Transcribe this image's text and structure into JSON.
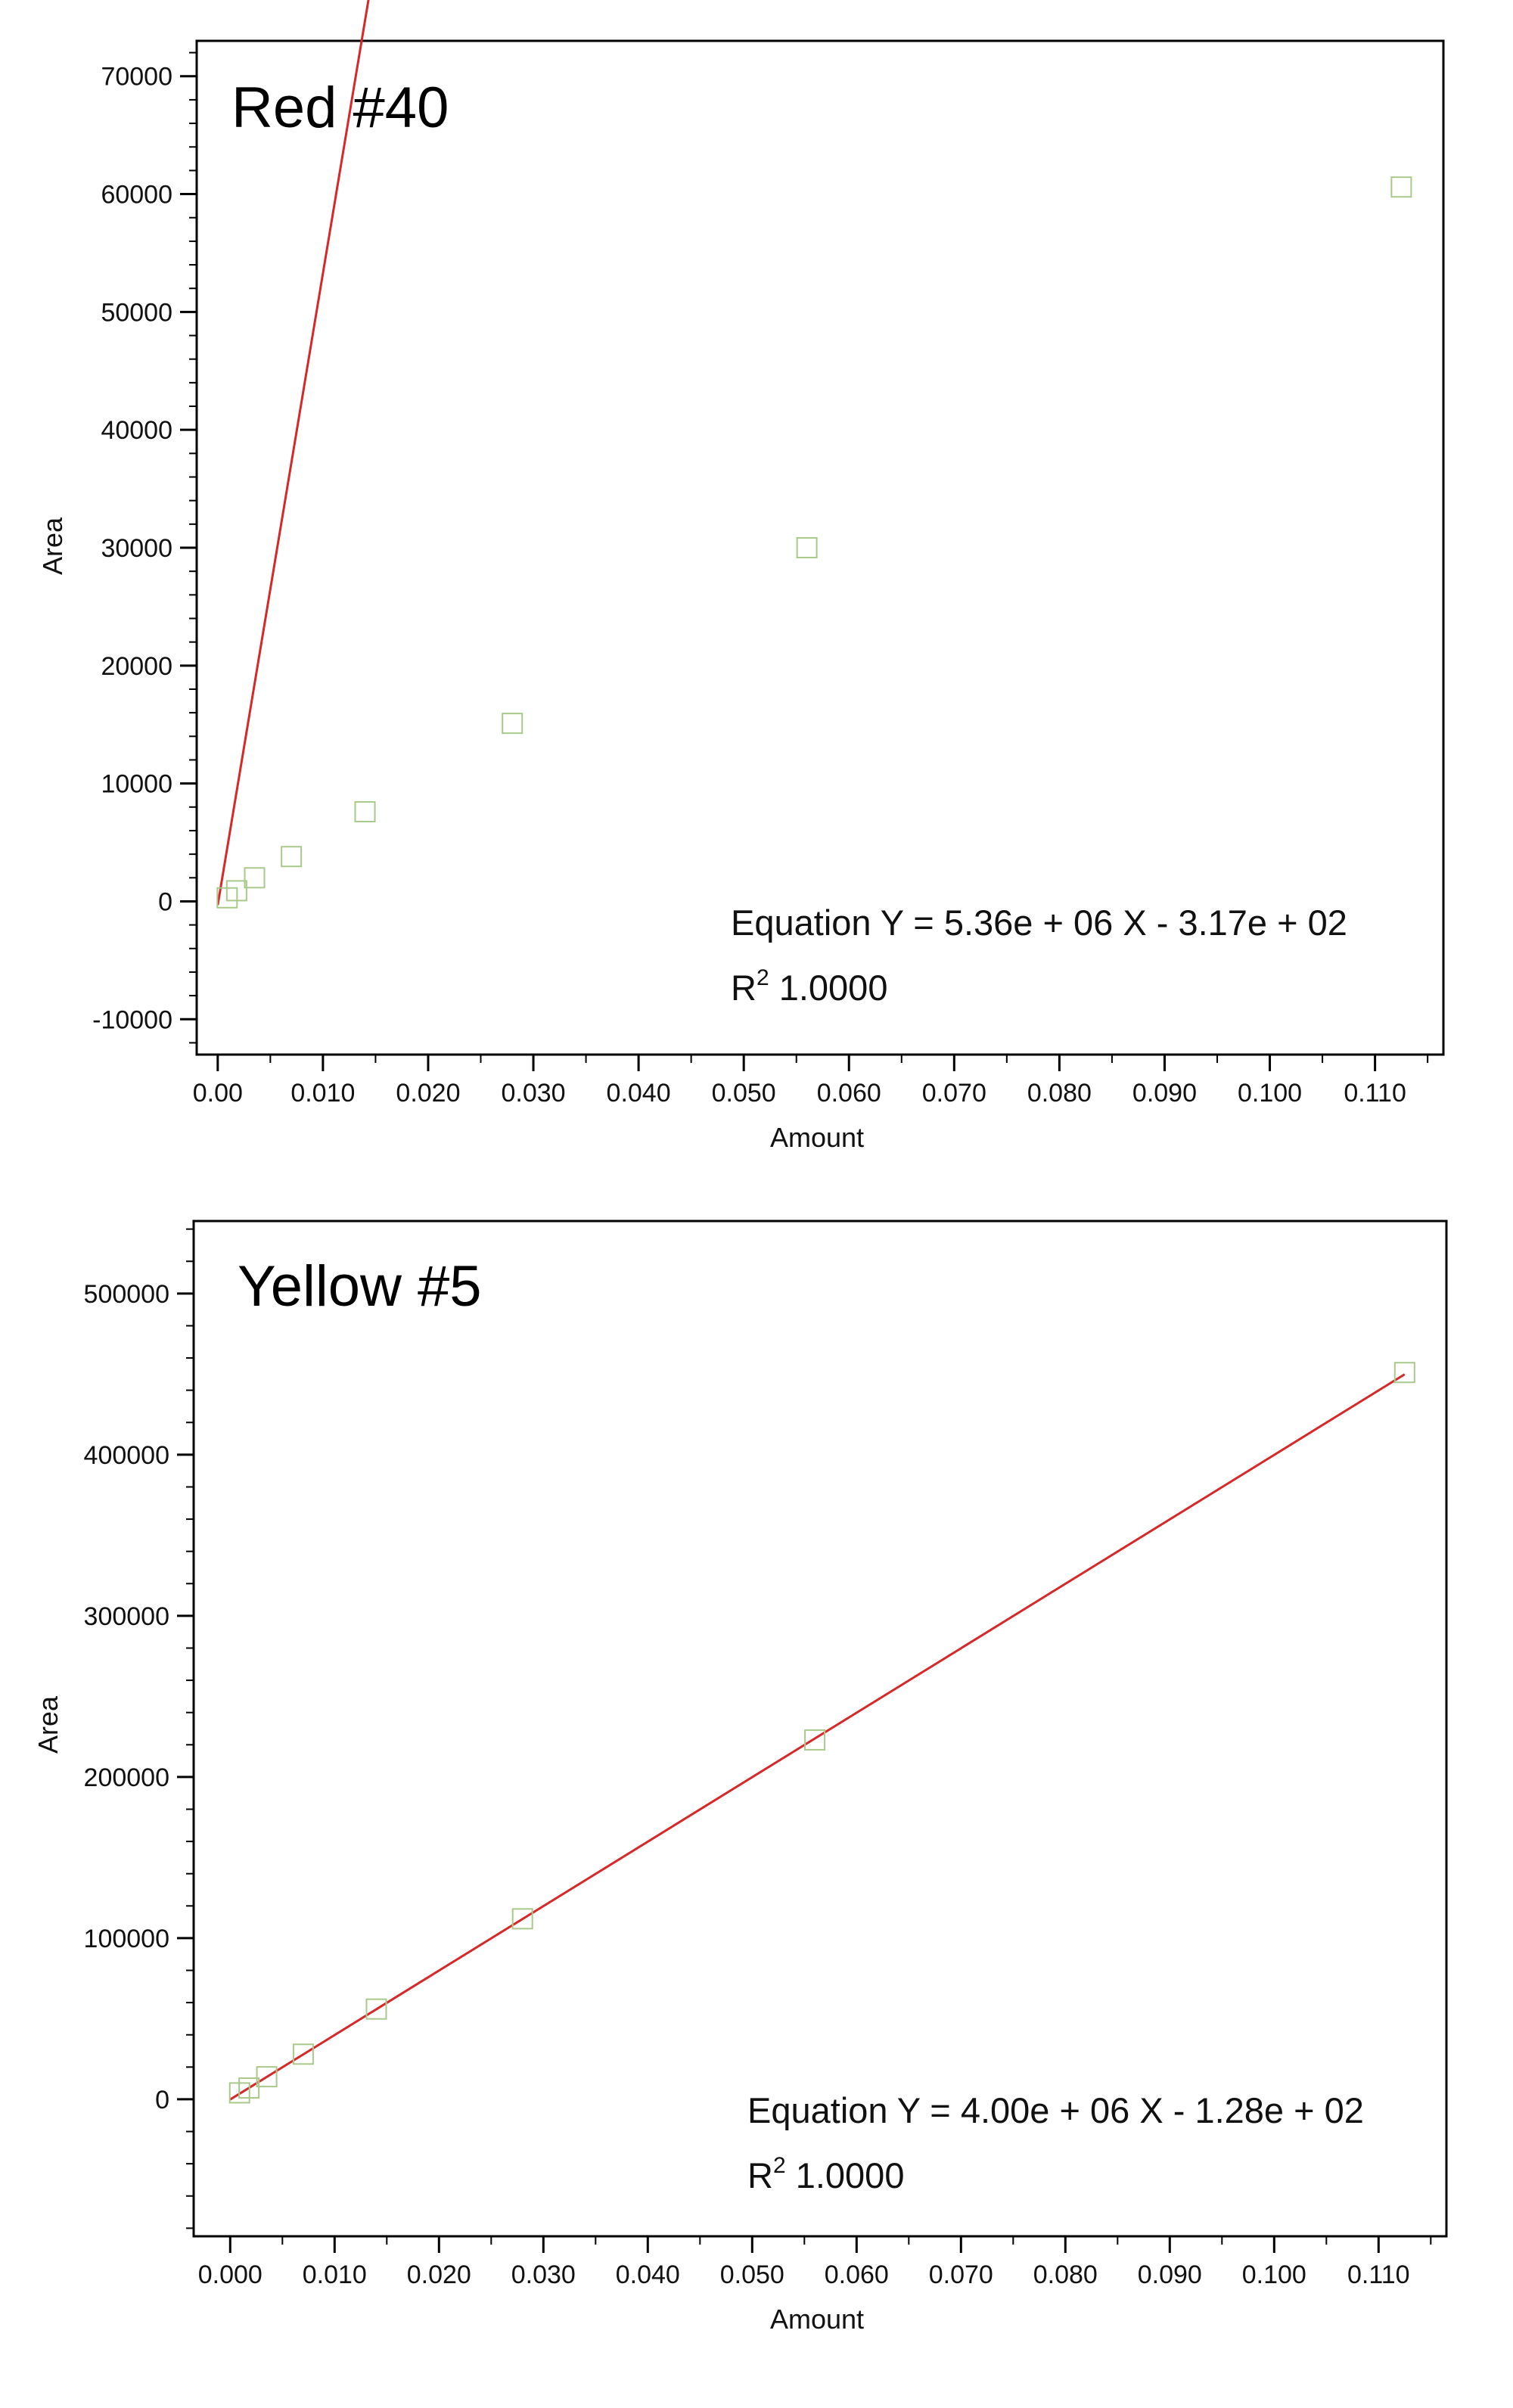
{
  "chart_data": [
    {
      "type": "scatter",
      "title": "Red #40",
      "xlabel": "Amount",
      "ylabel": "Area",
      "xlim": [
        -0.002,
        0.1165
      ],
      "ylim": [
        -13000,
        73000
      ],
      "x_ticks": [
        "0.00",
        "0.010",
        "0.020",
        "0.030",
        "0.040",
        "0.050",
        "0.060",
        "0.070",
        "0.080",
        "0.090",
        "0.100",
        "0.110"
      ],
      "x_tick_values": [
        0.0,
        0.01,
        0.02,
        0.03,
        0.04,
        0.05,
        0.06,
        0.07,
        0.08,
        0.09,
        0.1,
        0.11
      ],
      "y_ticks": [
        "-10000",
        "0",
        "10000",
        "20000",
        "30000",
        "40000",
        "50000",
        "60000",
        "70000"
      ],
      "y_tick_values": [
        -10000,
        0,
        10000,
        20000,
        30000,
        40000,
        50000,
        60000,
        70000
      ],
      "grid": false,
      "series": [
        {
          "x": [
            0.0009,
            0.0018,
            0.0035,
            0.007,
            0.014,
            0.028,
            0.056,
            0.1125
          ],
          "y": [
            300,
            900,
            2000,
            3800,
            7600,
            15100,
            30000,
            60600
          ]
        }
      ],
      "fit": {
        "slope": 5360000,
        "intercept": -317,
        "x_range": [
          0.0,
          0.1125
        ]
      },
      "annotations": {
        "equation": "Equation Y = 5.36e + 06 X - 3.17e + 02",
        "r2_label": "R",
        "r2_exp": "2",
        "r2_value": " 1.0000"
      },
      "colors": {
        "line": "#d62828",
        "marker": "#a9c98a"
      }
    },
    {
      "type": "scatter",
      "title": "Yellow #5",
      "xlabel": "Amount",
      "ylabel": "Area",
      "xlim": [
        -0.0035,
        0.1165
      ],
      "ylim": [
        -85000,
        545000
      ],
      "x_ticks": [
        "0.000",
        "0.010",
        "0.020",
        "0.030",
        "0.040",
        "0.050",
        "0.060",
        "0.070",
        "0.080",
        "0.090",
        "0.100",
        "0.110"
      ],
      "x_tick_values": [
        0.0,
        0.01,
        0.02,
        0.03,
        0.04,
        0.05,
        0.06,
        0.07,
        0.08,
        0.09,
        0.1,
        0.11
      ],
      "y_ticks": [
        "0",
        "100000",
        "200000",
        "300000",
        "400000",
        "500000"
      ],
      "y_tick_values": [
        0,
        100000,
        200000,
        300000,
        400000,
        500000
      ],
      "grid": false,
      "series": [
        {
          "x": [
            0.0009,
            0.0018,
            0.0035,
            0.007,
            0.014,
            0.028,
            0.056,
            0.1125
          ],
          "y": [
            4000,
            7000,
            14000,
            28000,
            56000,
            112000,
            223000,
            451000
          ]
        }
      ],
      "fit": {
        "slope": 4000000,
        "intercept": -128,
        "x_range": [
          0.0,
          0.1125
        ]
      },
      "annotations": {
        "equation": "Equation Y = 4.00e + 06 X - 1.28e + 02",
        "r2_label": "R",
        "r2_exp": "2",
        "r2_value": " 1.0000"
      },
      "colors": {
        "line": "#d62828",
        "marker": "#a9c98a"
      }
    }
  ]
}
